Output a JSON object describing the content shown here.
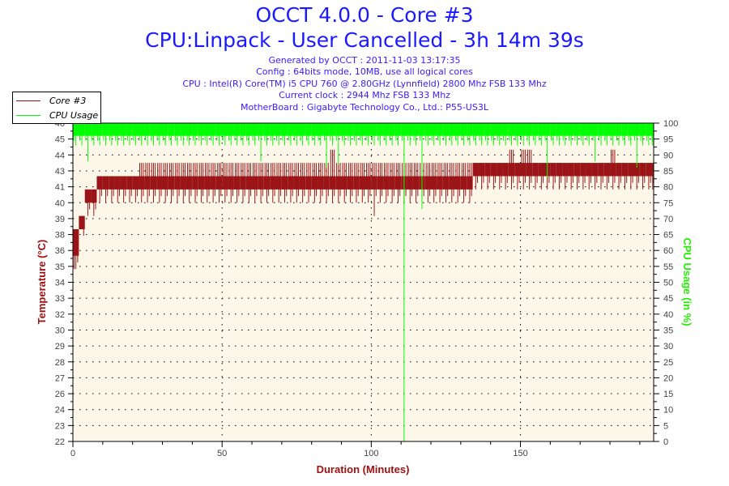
{
  "header": {
    "title": "OCCT 4.0.0 - Core #3",
    "subtitle": "CPU:Linpack - User Cancelled - 3h 14m 39s",
    "info_lines": [
      "Generated by OCCT : 2011-11-03 13:17:35",
      "Config : 64bits mode, 10MB, use all logical cores",
      "CPU : Intel(R) Core(TM) i5 CPU 760 @ 2.80GHz (Lynnfield) 2800 Mhz FSB 133 Mhz",
      "Current clock : 2944 Mhz FSB 133 Mhz",
      "MotherBoard : Gigabyte Technology Co., Ltd.: P55-US3L"
    ]
  },
  "legend": {
    "placement": "top-left",
    "items": [
      {
        "label": "Core #3",
        "color": "#9b1518"
      },
      {
        "label": "CPU Usage",
        "color": "#00ff00"
      }
    ]
  },
  "chart_data": {
    "type": "line",
    "xlabel": "Duration (Minutes)",
    "ylabel_left": "Temperature (°C)",
    "ylabel_right": "CPU Usage (in %)",
    "xlim": [
      0,
      194.65
    ],
    "ylim_left": [
      22,
      46
    ],
    "ylim_right": [
      0,
      100
    ],
    "x_ticks": [
      0,
      50,
      100,
      150
    ],
    "x_minor_tick_step": 10,
    "y_left_tick_labels": [
      "22",
      "23",
      "24",
      "26",
      "27",
      "28",
      "29",
      "30",
      "32",
      "33",
      "34",
      "35",
      "36",
      "38",
      "39",
      "40",
      "41",
      "43",
      "44",
      "45",
      "46"
    ],
    "y_right_ticks": [
      0,
      5,
      10,
      15,
      20,
      25,
      30,
      35,
      40,
      45,
      50,
      55,
      60,
      65,
      70,
      75,
      80,
      85,
      90,
      95,
      100
    ],
    "grid": true,
    "background": "#fdf7ea",
    "sample_step_minutes": 2,
    "series": [
      {
        "name": "Core #3",
        "axis": "left",
        "color": "#9b1518",
        "min": [
          35,
          38,
          39,
          39,
          40,
          40,
          40,
          40,
          40,
          40,
          40,
          40,
          40,
          40,
          40,
          40,
          40,
          40,
          40,
          40,
          40,
          40,
          40,
          40,
          40,
          40,
          40,
          40,
          40,
          40,
          40,
          40,
          40,
          40,
          40,
          40,
          40,
          40,
          40,
          40,
          40,
          40,
          40,
          40,
          40,
          40,
          40,
          40,
          40,
          40,
          39,
          40,
          40,
          40,
          40,
          40,
          40,
          40,
          40,
          40,
          40,
          40,
          40,
          40,
          40,
          40,
          40,
          41,
          41,
          41,
          41,
          41,
          41,
          41,
          41,
          41,
          41,
          41,
          41,
          41,
          41,
          41,
          41,
          41,
          41,
          41,
          41,
          41,
          41,
          41,
          41,
          41,
          41,
          41,
          41,
          41,
          41,
          41
        ],
        "max": [
          38,
          39,
          41,
          41,
          42,
          42,
          42,
          42,
          42,
          42,
          42,
          43,
          43,
          43,
          43,
          43,
          43,
          43,
          43,
          43,
          43,
          43,
          43,
          43,
          43,
          43,
          43,
          43,
          43,
          43,
          43,
          43,
          43,
          43,
          43,
          43,
          43,
          43,
          43,
          43,
          43,
          43,
          43,
          44,
          43,
          43,
          43,
          43,
          43,
          43,
          43,
          43,
          43,
          43,
          43,
          43,
          43,
          43,
          43,
          43,
          43,
          43,
          43,
          43,
          43,
          43,
          43,
          43,
          43,
          43,
          43,
          43,
          43,
          44,
          43,
          44,
          44,
          43,
          43,
          43,
          43,
          43,
          43,
          43,
          43,
          43,
          43,
          43,
          43,
          43,
          44,
          43,
          43,
          43,
          43,
          43,
          43,
          43
        ],
        "typical_low": [
          36,
          38,
          40,
          40,
          41,
          41,
          41,
          41,
          41,
          41,
          41,
          41,
          41,
          41,
          41,
          41,
          41,
          41,
          41,
          41,
          41,
          41,
          41,
          41,
          41,
          41,
          41,
          41,
          41,
          41,
          41,
          41,
          41,
          41,
          41,
          41,
          41,
          41,
          41,
          41,
          41,
          41,
          41,
          41,
          41,
          41,
          41,
          41,
          41,
          41,
          41,
          41,
          41,
          41,
          41,
          41,
          41,
          41,
          41,
          41,
          41,
          41,
          41,
          41,
          41,
          41,
          41,
          42,
          42,
          42,
          42,
          42,
          42,
          42,
          42,
          42,
          42,
          42,
          42,
          42,
          42,
          42,
          42,
          42,
          42,
          42,
          42,
          42,
          42,
          42,
          42,
          42,
          42,
          42,
          42,
          42,
          42,
          42
        ],
        "typical_high": [
          38,
          39,
          41,
          41,
          42,
          42,
          42,
          42,
          42,
          42,
          42,
          42,
          42,
          42,
          42,
          42,
          42,
          42,
          42,
          42,
          42,
          42,
          42,
          42,
          42,
          42,
          42,
          42,
          42,
          42,
          42,
          42,
          42,
          42,
          42,
          42,
          42,
          42,
          42,
          42,
          42,
          42,
          42,
          42,
          42,
          42,
          42,
          42,
          42,
          42,
          42,
          42,
          42,
          42,
          42,
          42,
          42,
          42,
          42,
          42,
          42,
          42,
          42,
          42,
          42,
          42,
          42,
          43,
          43,
          43,
          43,
          43,
          43,
          43,
          43,
          43,
          43,
          43,
          43,
          43,
          43,
          43,
          43,
          43,
          43,
          43,
          43,
          43,
          43,
          43,
          43,
          43,
          43,
          43,
          43,
          43,
          43,
          43
        ]
      },
      {
        "name": "CPU Usage",
        "axis": "right",
        "color": "#00ff00",
        "min": [
          93,
          93,
          88,
          93,
          93,
          93,
          93,
          93,
          93,
          93,
          93,
          93,
          93,
          93,
          93,
          93,
          93,
          93,
          93,
          93,
          93,
          93,
          93,
          93,
          93,
          93,
          93,
          93,
          93,
          93,
          93,
          88,
          93,
          93,
          93,
          93,
          93,
          93,
          93,
          93,
          93,
          93,
          86,
          93,
          87,
          93,
          93,
          93,
          93,
          93,
          93,
          93,
          93,
          93,
          93,
          0,
          93,
          93,
          73,
          93,
          93,
          93,
          93,
          93,
          93,
          93,
          93,
          93,
          93,
          93,
          93,
          93,
          93,
          93,
          93,
          93,
          93,
          93,
          93,
          83,
          93,
          93,
          93,
          93,
          93,
          93,
          93,
          88,
          93,
          93,
          93,
          93,
          93,
          93,
          86,
          93,
          93,
          93
        ],
        "typical_range": [
          96,
          100
        ],
        "max": 100
      }
    ]
  }
}
